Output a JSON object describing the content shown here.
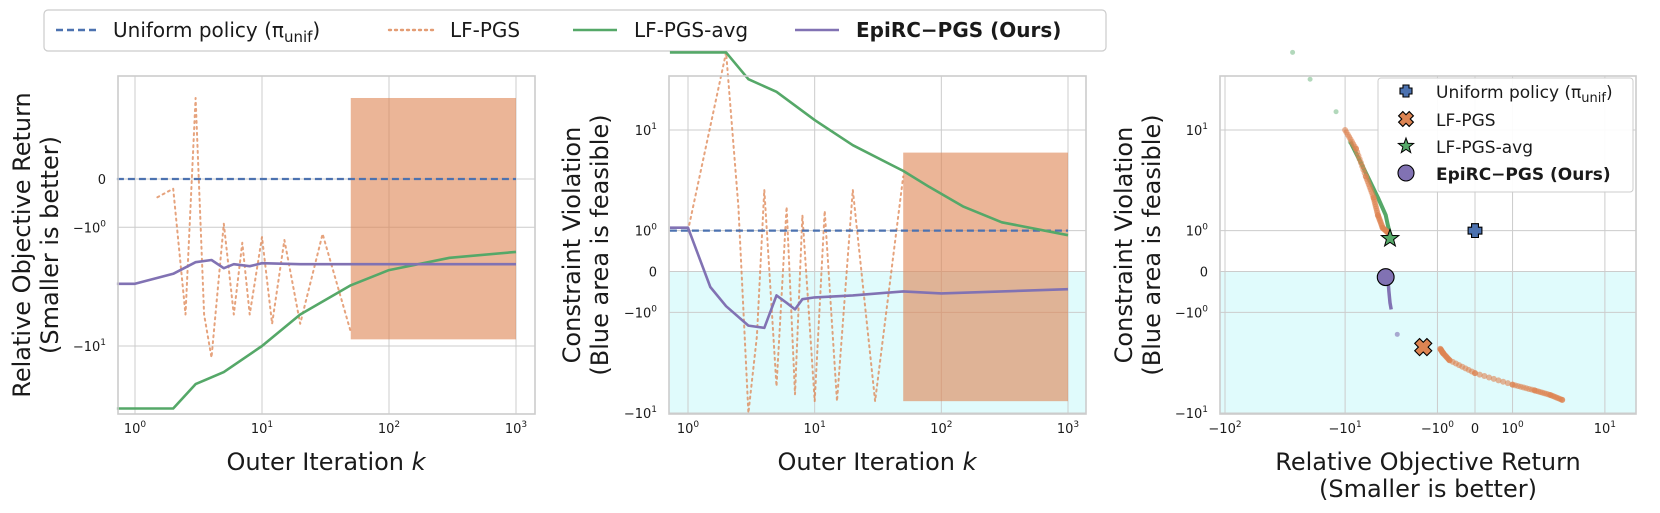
{
  "legend": {
    "items": [
      {
        "label": "Uniform policy (π",
        "sub": "unif",
        "suffix": ")",
        "style": "dashed",
        "color": "#4c72b0"
      },
      {
        "label": "LF-PGS",
        "style": "dotted",
        "color": "#dd8452"
      },
      {
        "label": "LF-PGS-avg",
        "style": "solid",
        "color": "#55a868"
      },
      {
        "label": "EpiRC−PGS (Ours)",
        "style": "solid",
        "color": "#8172b3",
        "bold": true
      }
    ]
  },
  "chart_data": [
    {
      "type": "line",
      "xlabel": "Outer Iteration k",
      "ylabel_lines": [
        "Relative Objective Return",
        "(Smaller is better)"
      ],
      "xscale": "log",
      "yscale": "symlog",
      "xlim": [
        0.72,
        1400
      ],
      "xticks": [
        {
          "v": 1,
          "b": "10",
          "e": "0"
        },
        {
          "v": 10,
          "b": "10",
          "e": "1"
        },
        {
          "v": 100,
          "b": "10",
          "e": "2"
        },
        {
          "v": 1000,
          "b": "10",
          "e": "3"
        }
      ],
      "yticks": [
        {
          "v": 0,
          "t": "0"
        },
        {
          "v": -1,
          "b": "−10",
          "e": "0"
        },
        {
          "v": -10,
          "b": "−10",
          "e": "1"
        }
      ],
      "grid": true,
      "series": [
        {
          "name": "Uniform policy",
          "style": "dashed",
          "color": "#4c72b0",
          "points": [
            [
              0.72,
              0
            ],
            [
              1000,
              0
            ]
          ]
        },
        {
          "name": "LF-PGS-avg",
          "style": "solid",
          "color": "#55a868",
          "points": [
            [
              0.72,
              -26
            ],
            [
              2,
              -26
            ],
            [
              3,
              -18
            ],
            [
              5,
              -15
            ],
            [
              10,
              -10
            ],
            [
              20,
              -6
            ],
            [
              50,
              -3.6
            ],
            [
              100,
              -2.7
            ],
            [
              300,
              -2.1
            ],
            [
              1000,
              -1.85
            ]
          ]
        },
        {
          "name": "EpiRC−PGS (Ours)",
          "style": "solid",
          "color": "#8172b3",
          "points": [
            [
              0.72,
              -3.5
            ],
            [
              1,
              -3.5
            ],
            [
              2,
              -2.9
            ],
            [
              3,
              -2.3
            ],
            [
              4,
              -2.2
            ],
            [
              5,
              -2.6
            ],
            [
              6,
              -2.4
            ],
            [
              8,
              -2.5
            ],
            [
              10,
              -2.35
            ],
            [
              20,
              -2.4
            ],
            [
              100,
              -2.4
            ],
            [
              1000,
              -2.4
            ]
          ]
        },
        {
          "name": "LF-PGS",
          "style": "dotted",
          "color": "#dd8452",
          "points": [
            [
              1.5,
              -0.3
            ],
            [
              2,
              -0.15
            ],
            [
              2.5,
              -6
            ],
            [
              3,
              2.2
            ],
            [
              3.5,
              -6
            ],
            [
              4,
              -12
            ],
            [
              5,
              -0.9
            ],
            [
              6,
              -6
            ],
            [
              7,
              -1.5
            ],
            [
              8,
              -6
            ],
            [
              10,
              -1.3
            ],
            [
              12,
              -7
            ],
            [
              15,
              -1.4
            ],
            [
              20,
              -7
            ],
            [
              30,
              -1.2
            ],
            [
              50,
              -8
            ]
          ],
          "band": {
            "x_from": 50,
            "x_to": 1000,
            "y_low": -9,
            "y_high": 2.2
          }
        }
      ]
    },
    {
      "type": "line",
      "xlabel": "Outer Iteration k",
      "ylabel_lines": [
        "Constraint Violation",
        "(Blue area is feasible)"
      ],
      "xscale": "log",
      "yscale": "symlog",
      "xlim": [
        0.72,
        1400
      ],
      "feasible_region": {
        "below": 0,
        "color": "#e0fbfc"
      },
      "xticks": [
        {
          "v": 1,
          "b": "10",
          "e": "0"
        },
        {
          "v": 10,
          "b": "10",
          "e": "1"
        },
        {
          "v": 100,
          "b": "10",
          "e": "2"
        },
        {
          "v": 1000,
          "b": "10",
          "e": "3"
        }
      ],
      "yticks": [
        {
          "v": 10,
          "b": "10",
          "e": "1"
        },
        {
          "v": 1,
          "b": "10",
          "e": "0"
        },
        {
          "v": 0,
          "t": "0"
        },
        {
          "v": -1,
          "b": "−10",
          "e": "0"
        },
        {
          "v": -10,
          "b": "−10",
          "e": "1"
        }
      ],
      "grid": true,
      "series": [
        {
          "name": "Uniform policy",
          "style": "dashed",
          "color": "#4c72b0",
          "points": [
            [
              0.72,
              1
            ],
            [
              1000,
              1
            ]
          ]
        },
        {
          "name": "LF-PGS-avg",
          "style": "solid",
          "color": "#55a868",
          "points": [
            [
              0.72,
              40
            ],
            [
              2,
              40
            ],
            [
              3,
              25
            ],
            [
              5,
              20
            ],
            [
              10,
              12
            ],
            [
              20,
              7.5
            ],
            [
              50,
              4.5
            ],
            [
              80,
              3.2
            ],
            [
              150,
              2
            ],
            [
              300,
              1.3
            ],
            [
              1000,
              0.85
            ]
          ]
        },
        {
          "name": "EpiRC−PGS (Ours)",
          "style": "solid",
          "color": "#8172b3",
          "points": [
            [
              0.72,
              1.1
            ],
            [
              1,
              1.1
            ],
            [
              1.5,
              -0.3
            ],
            [
              2,
              -0.8
            ],
            [
              3,
              -1.5
            ],
            [
              4,
              -1.6
            ],
            [
              5,
              -0.5
            ],
            [
              6,
              -0.7
            ],
            [
              7,
              -0.9
            ],
            [
              8,
              -0.6
            ],
            [
              10,
              -0.55
            ],
            [
              20,
              -0.5
            ],
            [
              50,
              -0.4
            ],
            [
              100,
              -0.45
            ],
            [
              1000,
              -0.35
            ]
          ]
        },
        {
          "name": "LF-PGS",
          "style": "dotted",
          "color": "#dd8452",
          "points": [
            [
              1,
              1
            ],
            [
              2,
              40
            ],
            [
              2.5,
              2
            ],
            [
              3,
              -10
            ],
            [
              3.5,
              -2
            ],
            [
              4,
              3
            ],
            [
              5,
              -6
            ],
            [
              6,
              2
            ],
            [
              7,
              -7
            ],
            [
              8,
              1.6
            ],
            [
              10,
              -8
            ],
            [
              12,
              1.8
            ],
            [
              15,
              -8
            ],
            [
              20,
              3
            ],
            [
              30,
              -8
            ],
            [
              50,
              4
            ]
          ],
          "band": {
            "x_from": 50,
            "x_to": 1000,
            "y_low": -8,
            "y_high": 6.5
          }
        }
      ]
    },
    {
      "type": "scatter",
      "xlabel_lines": [
        "Relative Objective Return",
        "(Smaller is better)"
      ],
      "ylabel_lines": [
        "Constraint Violation",
        "(Blue area is feasible)"
      ],
      "xscale": "symlog",
      "yscale": "symlog",
      "feasible_region": {
        "below": 0,
        "color": "#e0fbfc"
      },
      "xticks": [
        {
          "v": -100,
          "b": "−10",
          "e": "2"
        },
        {
          "v": -10,
          "b": "−10",
          "e": "1"
        },
        {
          "v": -1,
          "b": "−10",
          "e": "0"
        },
        {
          "v": 0,
          "t": "0"
        },
        {
          "v": 1,
          "b": "10",
          "e": "0"
        },
        {
          "v": 10,
          "b": "10",
          "e": "1"
        }
      ],
      "yticks": [
        {
          "v": 10,
          "b": "10",
          "e": "1"
        },
        {
          "v": 1,
          "b": "10",
          "e": "0"
        },
        {
          "v": 0,
          "t": "0"
        },
        {
          "v": -1,
          "b": "−10",
          "e": "0"
        },
        {
          "v": -10,
          "b": "−10",
          "e": "1"
        }
      ],
      "grid": true,
      "legend": {
        "position": "top-right",
        "items": [
          {
            "label": "Uniform policy (π",
            "sub": "unif",
            "suffix": ")",
            "marker": "plus",
            "color": "#4c72b0"
          },
          {
            "label": "LF-PGS",
            "marker": "x",
            "color": "#dd8452"
          },
          {
            "label": "LF-PGS-avg",
            "marker": "star",
            "color": "#55a868"
          },
          {
            "label": "EpiRC−PGS (Ours)",
            "marker": "circle",
            "color": "#8172b3",
            "bold": true
          }
        ]
      },
      "trajectories": [
        {
          "name": "LF-PGS-avg",
          "color": "#55a868",
          "points": [
            [
              -28,
              40
            ],
            [
              -20,
              25
            ],
            [
              -12,
              14
            ],
            [
              -9,
              8
            ],
            [
              -7,
              5
            ],
            [
              -5,
              2.5
            ],
            [
              -4.2,
              1.6
            ],
            [
              -4,
              1.2
            ],
            [
              -3.8,
              0.9
            ]
          ]
        },
        {
          "name": "LF-PGS",
          "color": "#dd8452",
          "points": [
            [
              -10,
              10
            ],
            [
              -8,
              7
            ],
            [
              -6.5,
              4
            ],
            [
              -5.5,
              2.5
            ],
            [
              -5,
              1.6
            ],
            [
              -4.5,
              1.1
            ],
            [
              -3.9,
              0.9
            ],
            [
              -0.9,
              -2.7
            ],
            [
              -0.8,
              -3
            ],
            [
              -0.6,
              -3.5
            ],
            [
              0,
              -4.6
            ],
            [
              1,
              -5.8
            ],
            [
              2,
              -6.5
            ],
            [
              3,
              -7.1
            ],
            [
              4,
              -7.8
            ]
          ]
        },
        {
          "name": "EpiRC−PGS (Ours)",
          "color": "#8172b3",
          "points": [
            [
              -4,
              -0.1
            ],
            [
              -3.9,
              -0.4
            ],
            [
              -3.8,
              -0.7
            ],
            [
              -3.7,
              -0.9
            ],
            [
              -3.2,
              -1.9
            ]
          ]
        }
      ],
      "final_points": [
        {
          "name": "Uniform policy",
          "marker": "plus",
          "color": "#4c72b0",
          "x": 0,
          "y": 1
        },
        {
          "name": "LF-PGS",
          "marker": "x",
          "color": "#dd8452",
          "x": -1.6,
          "y": -2.6
        },
        {
          "name": "LF-PGS-avg",
          "marker": "star",
          "color": "#55a868",
          "x": -3.8,
          "y": 0.75
        },
        {
          "name": "EpiRC−PGS (Ours)",
          "marker": "circle",
          "color": "#8172b3",
          "x": -4.2,
          "y": -0.1
        }
      ]
    }
  ]
}
